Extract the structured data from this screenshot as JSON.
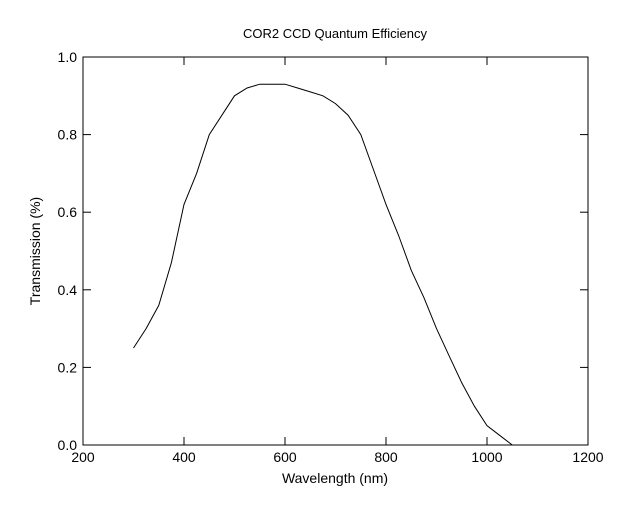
{
  "chart_data": {
    "type": "line",
    "title": "COR2 CCD Quantum Efficiency",
    "xlabel": "Wavelength (nm)",
    "ylabel": "Transmission (%)",
    "xlim": [
      200,
      1200
    ],
    "ylim": [
      0.0,
      1.0
    ],
    "xticks": [
      200,
      400,
      600,
      800,
      1000,
      1200
    ],
    "xtick_labels": [
      "200",
      "400",
      "600",
      "800",
      "1000",
      "1200"
    ],
    "yticks": [
      0.0,
      0.2,
      0.4,
      0.6,
      0.8,
      1.0
    ],
    "ytick_labels": [
      "0.0",
      "0.2",
      "0.4",
      "0.6",
      "0.8",
      "1.0"
    ],
    "grid": false,
    "legend": "none",
    "line_color": "#000000",
    "series": [
      {
        "x": [
          300,
          325,
          350,
          375,
          400,
          425,
          450,
          475,
          500,
          525,
          550,
          575,
          600,
          625,
          650,
          675,
          700,
          725,
          750,
          775,
          800,
          825,
          850,
          875,
          900,
          925,
          950,
          975,
          1000,
          1025,
          1050
        ],
        "values": [
          0.25,
          0.3,
          0.36,
          0.47,
          0.62,
          0.7,
          0.8,
          0.85,
          0.9,
          0.92,
          0.93,
          0.93,
          0.93,
          0.92,
          0.91,
          0.9,
          0.88,
          0.85,
          0.8,
          0.71,
          0.62,
          0.54,
          0.45,
          0.38,
          0.3,
          0.23,
          0.16,
          0.1,
          0.05,
          0.025,
          0.0
        ]
      }
    ]
  }
}
